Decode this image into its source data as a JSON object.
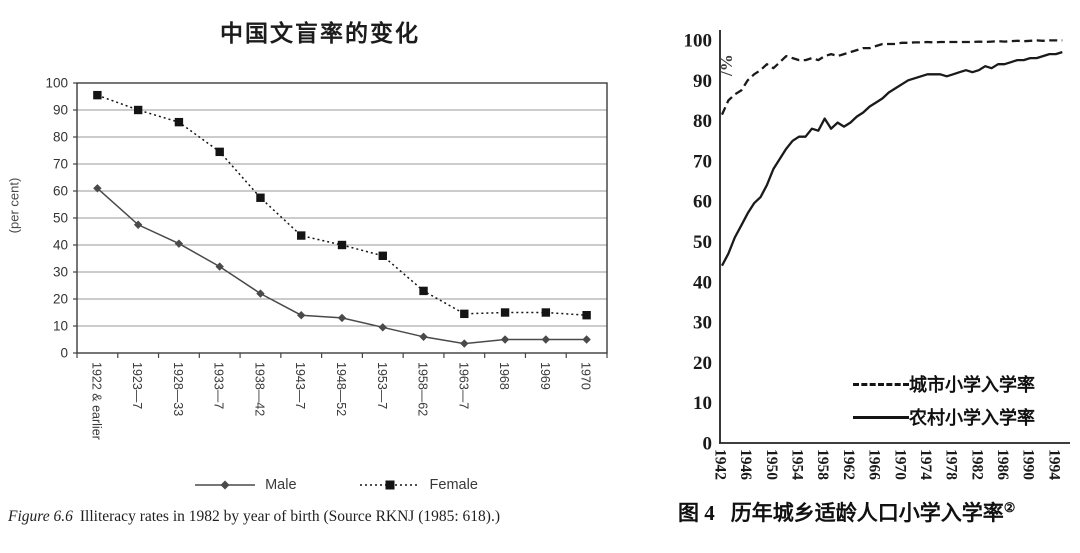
{
  "page": {
    "background": "#ffffff"
  },
  "figures": {
    "left": {
      "title": "中国文盲率的变化",
      "y_axis_label": "(per cent)",
      "caption": {
        "label": "Figure 6.6",
        "text": "Illiteracy rates in 1982 by year of birth (Source RKNJ (1985: 618).)"
      }
    },
    "right": {
      "y_unit_label": "/%",
      "caption": {
        "label": "图 4",
        "text": "历年城乡适龄人口小学入学率",
        "superscript": "②"
      }
    }
  },
  "chart_data": [
    {
      "type": "line",
      "title": "中国文盲率的变化",
      "ylabel": "(per cent)",
      "ylim": [
        0,
        100
      ],
      "ytick_step": 10,
      "grid": true,
      "legend_position": "bottom",
      "categories": [
        "1922 & earlier",
        "1923—7",
        "1928—33",
        "1933—7",
        "1938—42",
        "1943—7",
        "1948—52",
        "1953—7",
        "1958—62",
        "1963—7",
        "1968",
        "1969",
        "1970"
      ],
      "series": [
        {
          "name": "Male",
          "line": "solid",
          "marker": "diamond",
          "color": "#4a4a4a",
          "values": [
            61,
            47.5,
            40.5,
            32,
            22,
            14,
            13,
            9.5,
            6,
            3.5,
            5,
            5,
            5
          ]
        },
        {
          "name": "Female",
          "line": "dotted",
          "marker": "square",
          "color": "#141414",
          "values": [
            95.5,
            90,
            85.5,
            74.5,
            57.5,
            43.5,
            40,
            36,
            23,
            14.5,
            15,
            15,
            14
          ]
        }
      ],
      "caption": "Figure 6.6 Illiteracy rates in 1982 by year of birth (Source RKNJ (1985: 618).)"
    },
    {
      "type": "line",
      "title": "图4 历年城乡适龄人口小学入学率②",
      "ylabel": "/%",
      "ylim": [
        0,
        100
      ],
      "ytick_step": 10,
      "grid": false,
      "legend_position": "inside-bottom-right",
      "xticks": [
        1942,
        1946,
        1950,
        1954,
        1958,
        1962,
        1966,
        1970,
        1974,
        1978,
        1982,
        1986,
        1990,
        1994
      ],
      "years": [
        1942,
        1943,
        1944,
        1945,
        1946,
        1947,
        1948,
        1949,
        1950,
        1951,
        1952,
        1953,
        1954,
        1955,
        1956,
        1957,
        1958,
        1959,
        1960,
        1961,
        1962,
        1963,
        1964,
        1965,
        1966,
        1967,
        1968,
        1969,
        1970,
        1971,
        1972,
        1973,
        1974,
        1975,
        1976,
        1977,
        1978,
        1979,
        1980,
        1981,
        1982,
        1983,
        1984,
        1985,
        1986,
        1987,
        1988,
        1989,
        1990,
        1991,
        1992,
        1993,
        1994,
        1995
      ],
      "series": [
        {
          "name": "城市小学入学率",
          "line": "dashed",
          "color": "#1a1a1a",
          "values": [
            81.5,
            85,
            86.5,
            87.5,
            90,
            91.5,
            92.5,
            94,
            93,
            94.5,
            96,
            95.5,
            95,
            95,
            95.5,
            95,
            96,
            96.5,
            96,
            96.5,
            97,
            97.5,
            98,
            98,
            98.5,
            99,
            99,
            99,
            99.3,
            99.3,
            99.4,
            99.4,
            99.5,
            99.4,
            99.5,
            99.5,
            99.5,
            99.5,
            99.5,
            99.5,
            99.6,
            99.5,
            99.6,
            99.7,
            99.6,
            99.7,
            99.8,
            99.7,
            99.8,
            99.9,
            99.8,
            99.9,
            99.9,
            99.9
          ]
        },
        {
          "name": "农村小学入学率",
          "line": "solid",
          "color": "#1a1a1a",
          "values": [
            44,
            47,
            51,
            54,
            57,
            59.5,
            61,
            64,
            68,
            70.5,
            73,
            75,
            76,
            76,
            78,
            77.5,
            80.5,
            78,
            79.5,
            78.5,
            79.5,
            81,
            82,
            83.5,
            84.5,
            85.5,
            87,
            88,
            89,
            90,
            90.5,
            91,
            91.5,
            91.5,
            91.5,
            91,
            91.5,
            92,
            92.5,
            92,
            92.5,
            93.5,
            93,
            94,
            94,
            94.5,
            95,
            95,
            95.5,
            95.5,
            96,
            96.5,
            96.5,
            97
          ]
        }
      ],
      "caption": "图4 历年城乡适龄人口小学入学率②"
    }
  ]
}
